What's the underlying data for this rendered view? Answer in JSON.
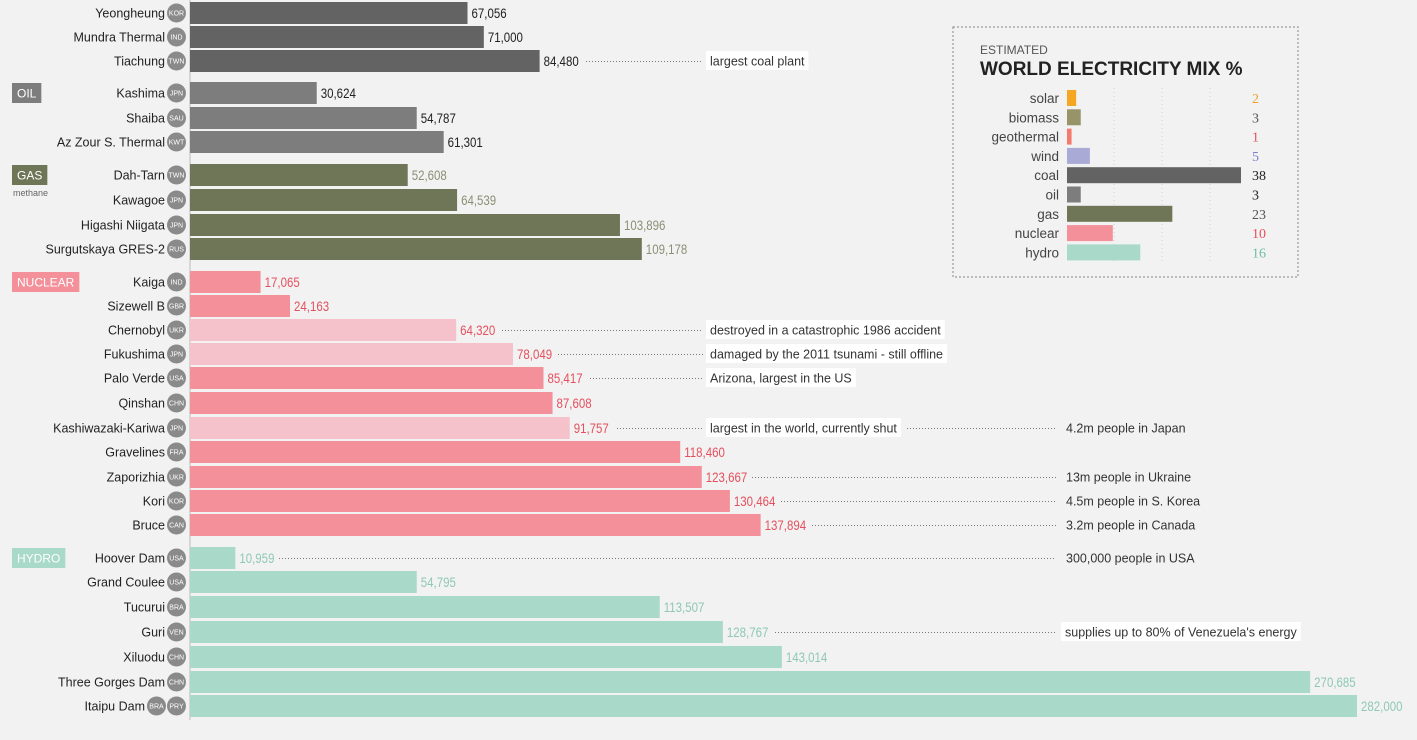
{
  "chart_data": {
    "type": "bar",
    "orientation": "horizontal",
    "units": "",
    "colors": {
      "coal": "#636363",
      "oil": "#7d7d7d",
      "gas": "#6f7657",
      "nuclear": "#f4909a",
      "nuclear_offline": "#f5c1ca",
      "hydro": "#a8d9c9",
      "coal_text": "#222222",
      "oil_text": "#222222",
      "gas_text": "#8c8f75",
      "nuclear_text": "#e5505e",
      "hydro_text": "#8fc8b6"
    },
    "categories": [
      {
        "key": "coal",
        "label": "",
        "sublabel": ""
      },
      {
        "key": "oil",
        "label": "OIL",
        "sublabel": ""
      },
      {
        "key": "gas",
        "label": "GAS",
        "sublabel": "methane"
      },
      {
        "key": "nuclear",
        "label": "NUCLEAR",
        "sublabel": ""
      },
      {
        "key": "hydro",
        "label": "HYDRO",
        "sublabel": ""
      }
    ],
    "plants": [
      {
        "name": "Yeongheung",
        "countries": [
          "KOR"
        ],
        "category": "coal",
        "value": 67056,
        "value_label": "67,056",
        "note": "",
        "note2": ""
      },
      {
        "name": "Mundra Thermal",
        "countries": [
          "IND"
        ],
        "category": "coal",
        "value": 71000,
        "value_label": "71,000",
        "note": "",
        "note2": ""
      },
      {
        "name": "Tiachung",
        "countries": [
          "TWN"
        ],
        "category": "coal",
        "value": 84480,
        "value_label": "84,480",
        "note": "largest coal plant",
        "note2": ""
      },
      {
        "name": "Kashima",
        "countries": [
          "JPN"
        ],
        "category": "oil",
        "value": 30624,
        "value_label": "30,624",
        "note": "",
        "note2": ""
      },
      {
        "name": "Shaiba",
        "countries": [
          "SAU"
        ],
        "category": "oil",
        "value": 54787,
        "value_label": "54,787",
        "note": "",
        "note2": ""
      },
      {
        "name": "Az Zour S. Thermal",
        "countries": [
          "KWT"
        ],
        "category": "oil",
        "value": 61301,
        "value_label": "61,301",
        "note": "",
        "note2": ""
      },
      {
        "name": "Dah-Tarn",
        "countries": [
          "TWN"
        ],
        "category": "gas",
        "value": 52608,
        "value_label": "52,608",
        "note": "",
        "note2": ""
      },
      {
        "name": "Kawagoe",
        "countries": [
          "JPN"
        ],
        "category": "gas",
        "value": 64539,
        "value_label": "64,539",
        "note": "",
        "note2": ""
      },
      {
        "name": "Higashi Niigata",
        "countries": [
          "JPN"
        ],
        "category": "gas",
        "value": 103896,
        "value_label": "103,896",
        "note": "",
        "note2": ""
      },
      {
        "name": "Surgutskaya GRES-2",
        "countries": [
          "RUS"
        ],
        "category": "gas",
        "value": 109178,
        "value_label": "109,178",
        "note": "",
        "note2": ""
      },
      {
        "name": "Kaiga",
        "countries": [
          "IND"
        ],
        "category": "nuclear",
        "value": 17065,
        "value_label": "17,065",
        "note": "",
        "note2": ""
      },
      {
        "name": "Sizewell B",
        "countries": [
          "GBR"
        ],
        "category": "nuclear",
        "value": 24163,
        "value_label": "24,163",
        "note": "",
        "note2": ""
      },
      {
        "name": "Chernobyl",
        "countries": [
          "UKR"
        ],
        "category": "nuclear",
        "offline": true,
        "value": 64320,
        "value_label": "64,320",
        "note": "destroyed in a catastrophic 1986 accident",
        "note2": ""
      },
      {
        "name": "Fukushima",
        "countries": [
          "JPN"
        ],
        "category": "nuclear",
        "offline": true,
        "value": 78049,
        "value_label": "78,049",
        "note": "damaged by the 2011 tsunami - still offline",
        "note2": ""
      },
      {
        "name": "Palo Verde",
        "countries": [
          "USA"
        ],
        "category": "nuclear",
        "value": 85417,
        "value_label": "85,417",
        "note": "Arizona, largest in the US",
        "note2": ""
      },
      {
        "name": "Qinshan",
        "countries": [
          "CHN"
        ],
        "category": "nuclear",
        "value": 87608,
        "value_label": "87,608",
        "note": "",
        "note2": ""
      },
      {
        "name": "Kashiwazaki-Kariwa",
        "countries": [
          "JPN"
        ],
        "category": "nuclear",
        "offline": true,
        "value": 91757,
        "value_label": "91,757",
        "note": "largest in the world, currently shut",
        "note2": "4.2m people in Japan"
      },
      {
        "name": "Gravelines",
        "countries": [
          "FRA"
        ],
        "category": "nuclear",
        "value": 118460,
        "value_label": "118,460",
        "note": "",
        "note2": ""
      },
      {
        "name": "Zaporizhia",
        "countries": [
          "UKR"
        ],
        "category": "nuclear",
        "value": 123667,
        "value_label": "123,667",
        "note": "",
        "note2": "13m people in Ukraine"
      },
      {
        "name": "Kori",
        "countries": [
          "KOR"
        ],
        "category": "nuclear",
        "value": 130464,
        "value_label": "130,464",
        "note": "",
        "note2": "4.5m people in S. Korea"
      },
      {
        "name": "Bruce",
        "countries": [
          "CAN"
        ],
        "category": "nuclear",
        "value": 137894,
        "value_label": "137,894",
        "note": "",
        "note2": "3.2m people in Canada"
      },
      {
        "name": "Hoover Dam",
        "countries": [
          "USA"
        ],
        "category": "hydro",
        "value": 10959,
        "value_label": "10,959",
        "note": "",
        "note2": "300,000 people in USA"
      },
      {
        "name": "Grand Coulee",
        "countries": [
          "USA"
        ],
        "category": "hydro",
        "value": 54795,
        "value_label": "54,795",
        "note": "",
        "note2": ""
      },
      {
        "name": "Tucurui",
        "countries": [
          "BRA"
        ],
        "category": "hydro",
        "value": 113507,
        "value_label": "113,507",
        "note": "",
        "note2": ""
      },
      {
        "name": "Guri",
        "countries": [
          "VEN"
        ],
        "category": "hydro",
        "value": 128767,
        "value_label": "128,767",
        "note": "",
        "note2": "supplies up to 80% of Venezuela's energy"
      },
      {
        "name": "Xiluodu",
        "countries": [
          "CHN"
        ],
        "category": "hydro",
        "value": 143014,
        "value_label": "143,014",
        "note": "",
        "note2": ""
      },
      {
        "name": "Three Gorges Dam",
        "countries": [
          "CHN"
        ],
        "category": "hydro",
        "value": 270685,
        "value_label": "270,685",
        "note": "",
        "note2": ""
      },
      {
        "name": "Itaipu Dam",
        "countries": [
          "BRA",
          "PRY"
        ],
        "category": "hydro",
        "value": 282000,
        "value_label": "282,000",
        "note": "",
        "note2": ""
      }
    ],
    "xlim": [
      0,
      282000
    ]
  },
  "mix": {
    "kicker": "ESTIMATED",
    "title": "WORLD ELECTRICITY MIX %",
    "xlim": [
      0,
      40
    ],
    "items": [
      {
        "label": "solar",
        "value": 2,
        "color": "#f5a623",
        "text_color": "#f0a030"
      },
      {
        "label": "biomass",
        "value": 3,
        "color": "#97946a",
        "text_color": "#555555"
      },
      {
        "label": "geothermal",
        "value": 1,
        "color": "#f47a6e",
        "text_color": "#e5505e"
      },
      {
        "label": "wind",
        "value": 5,
        "color": "#a9abd6",
        "text_color": "#7b7fc4"
      },
      {
        "label": "coal",
        "value": 38,
        "color": "#636363",
        "text_color": "#222222"
      },
      {
        "label": "oil",
        "value": 3,
        "color": "#7d7d7d",
        "text_color": "#222222"
      },
      {
        "label": "gas",
        "value": 23,
        "color": "#6f7657",
        "text_color": "#555555"
      },
      {
        "label": "nuclear",
        "value": 10,
        "color": "#f4909a",
        "text_color": "#e5505e"
      },
      {
        "label": "hydro",
        "value": 16,
        "color": "#a8d9c9",
        "text_color": "#6fbfa8"
      }
    ]
  }
}
